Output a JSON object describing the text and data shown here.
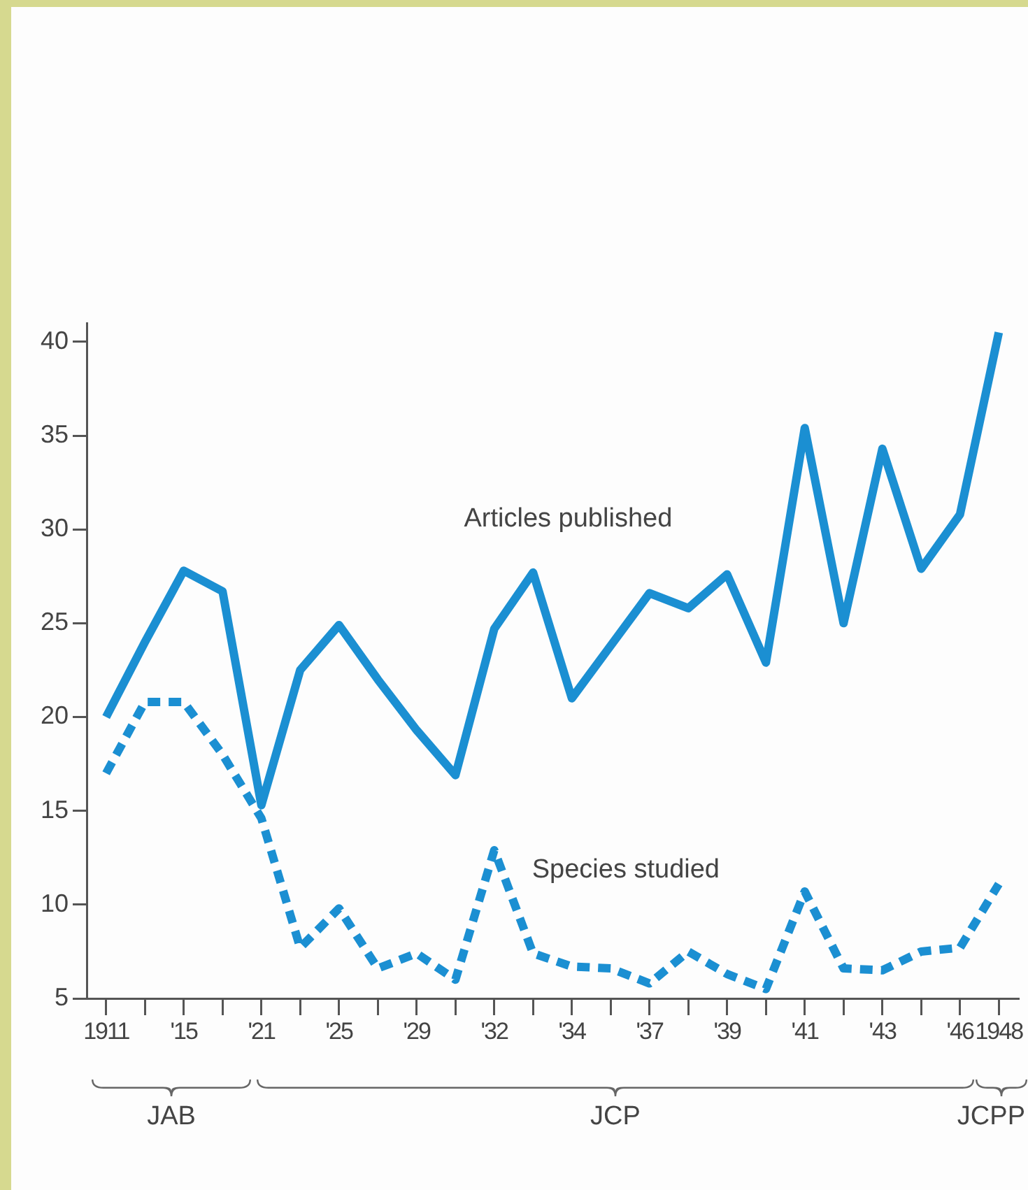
{
  "chart_data": {
    "type": "line",
    "categories": [
      "1911",
      null,
      "'15",
      null,
      "'21",
      null,
      "'25",
      null,
      "'29",
      null,
      "'32",
      null,
      "'34",
      null,
      "'37",
      null,
      "'39",
      null,
      "'41",
      null,
      "'43",
      null,
      "'46",
      "1948"
    ],
    "series": [
      {
        "name": "Articles published",
        "color": "#1b8fd2",
        "line_style": "solid",
        "values": [
          20,
          24,
          27.8,
          26.7,
          15.3,
          22.5,
          24.9,
          22,
          19.3,
          16.9,
          24.7,
          27.7,
          21,
          23.8,
          26.6,
          25.8,
          27.6,
          22.9,
          35.4,
          25,
          34.3,
          27.9,
          30.8,
          40.5
        ]
      },
      {
        "name": "Species studied",
        "color": "#1b8fd2",
        "line_style": "dashed",
        "values": [
          17,
          20.8,
          20.8,
          18,
          14.6,
          7.7,
          9.8,
          6.6,
          7.4,
          6,
          12.9,
          7.4,
          6.7,
          6.6,
          5.8,
          7.5,
          6.3,
          5.5,
          10.7,
          6.6,
          6.5,
          7.5,
          7.7,
          11.1
        ]
      }
    ],
    "ylim": [
      5,
      41
    ],
    "yticks": [
      5,
      10,
      15,
      20,
      25,
      30,
      35,
      40
    ],
    "grid": false,
    "legend": false,
    "marker": "none",
    "annotations": [
      "JAB",
      "JCP",
      "JCPP"
    ]
  }
}
